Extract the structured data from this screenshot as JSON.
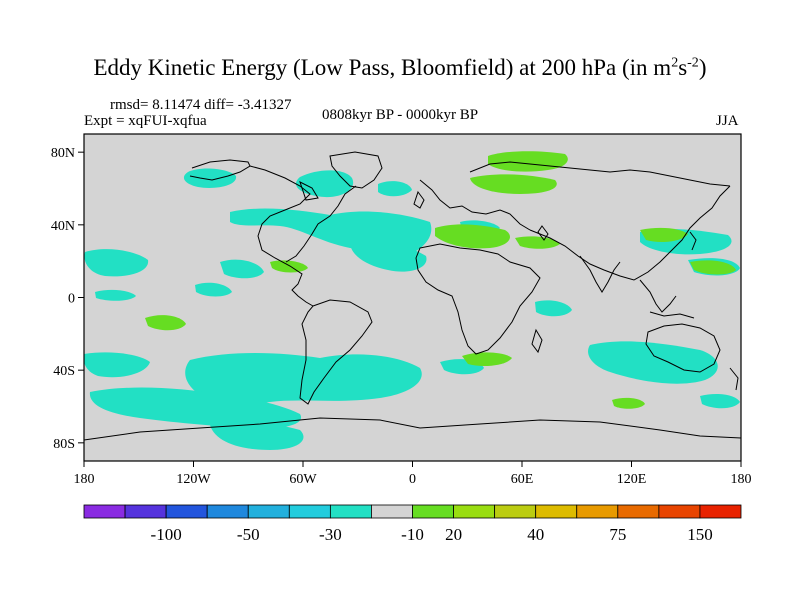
{
  "header": {
    "title_main": "Eddy Kinetic Energy (Low Pass, Bloomfield) at 200 hPa (in m",
    "title_sup1": "2",
    "title_mid": "s",
    "title_sup2": "-2",
    "title_end": ")",
    "stats": "rmsd= 8.11474 diff= -3.41327",
    "expt": "Expt = xqFUI-xqfua",
    "period": "0808kyr BP - 0000kyr BP",
    "season": "JJA"
  },
  "map": {
    "lat_labels": [
      "80N",
      "40N",
      "0",
      "40S",
      "80S"
    ],
    "lon_labels": [
      "180",
      "120W",
      "60W",
      "0",
      "60E",
      "120E",
      "180"
    ],
    "background_color": "#d4d4d4",
    "neg_color": "#22e0c4",
    "pos_color": "#66dd22"
  },
  "colorbar": {
    "colors": [
      "#8a2be2",
      "#5533dd",
      "#2255dd",
      "#1f88dd",
      "#22b0dd",
      "#22ccdd",
      "#22e0c4",
      "#d4d4d4",
      "#66dd22",
      "#99dd11",
      "#bbcc11",
      "#ddbb00",
      "#e89a00",
      "#e86a00",
      "#e84400",
      "#e82200"
    ],
    "labels": [
      "-100",
      "-50",
      "-30",
      "-10",
      "20",
      "40",
      "75",
      "150"
    ]
  }
}
